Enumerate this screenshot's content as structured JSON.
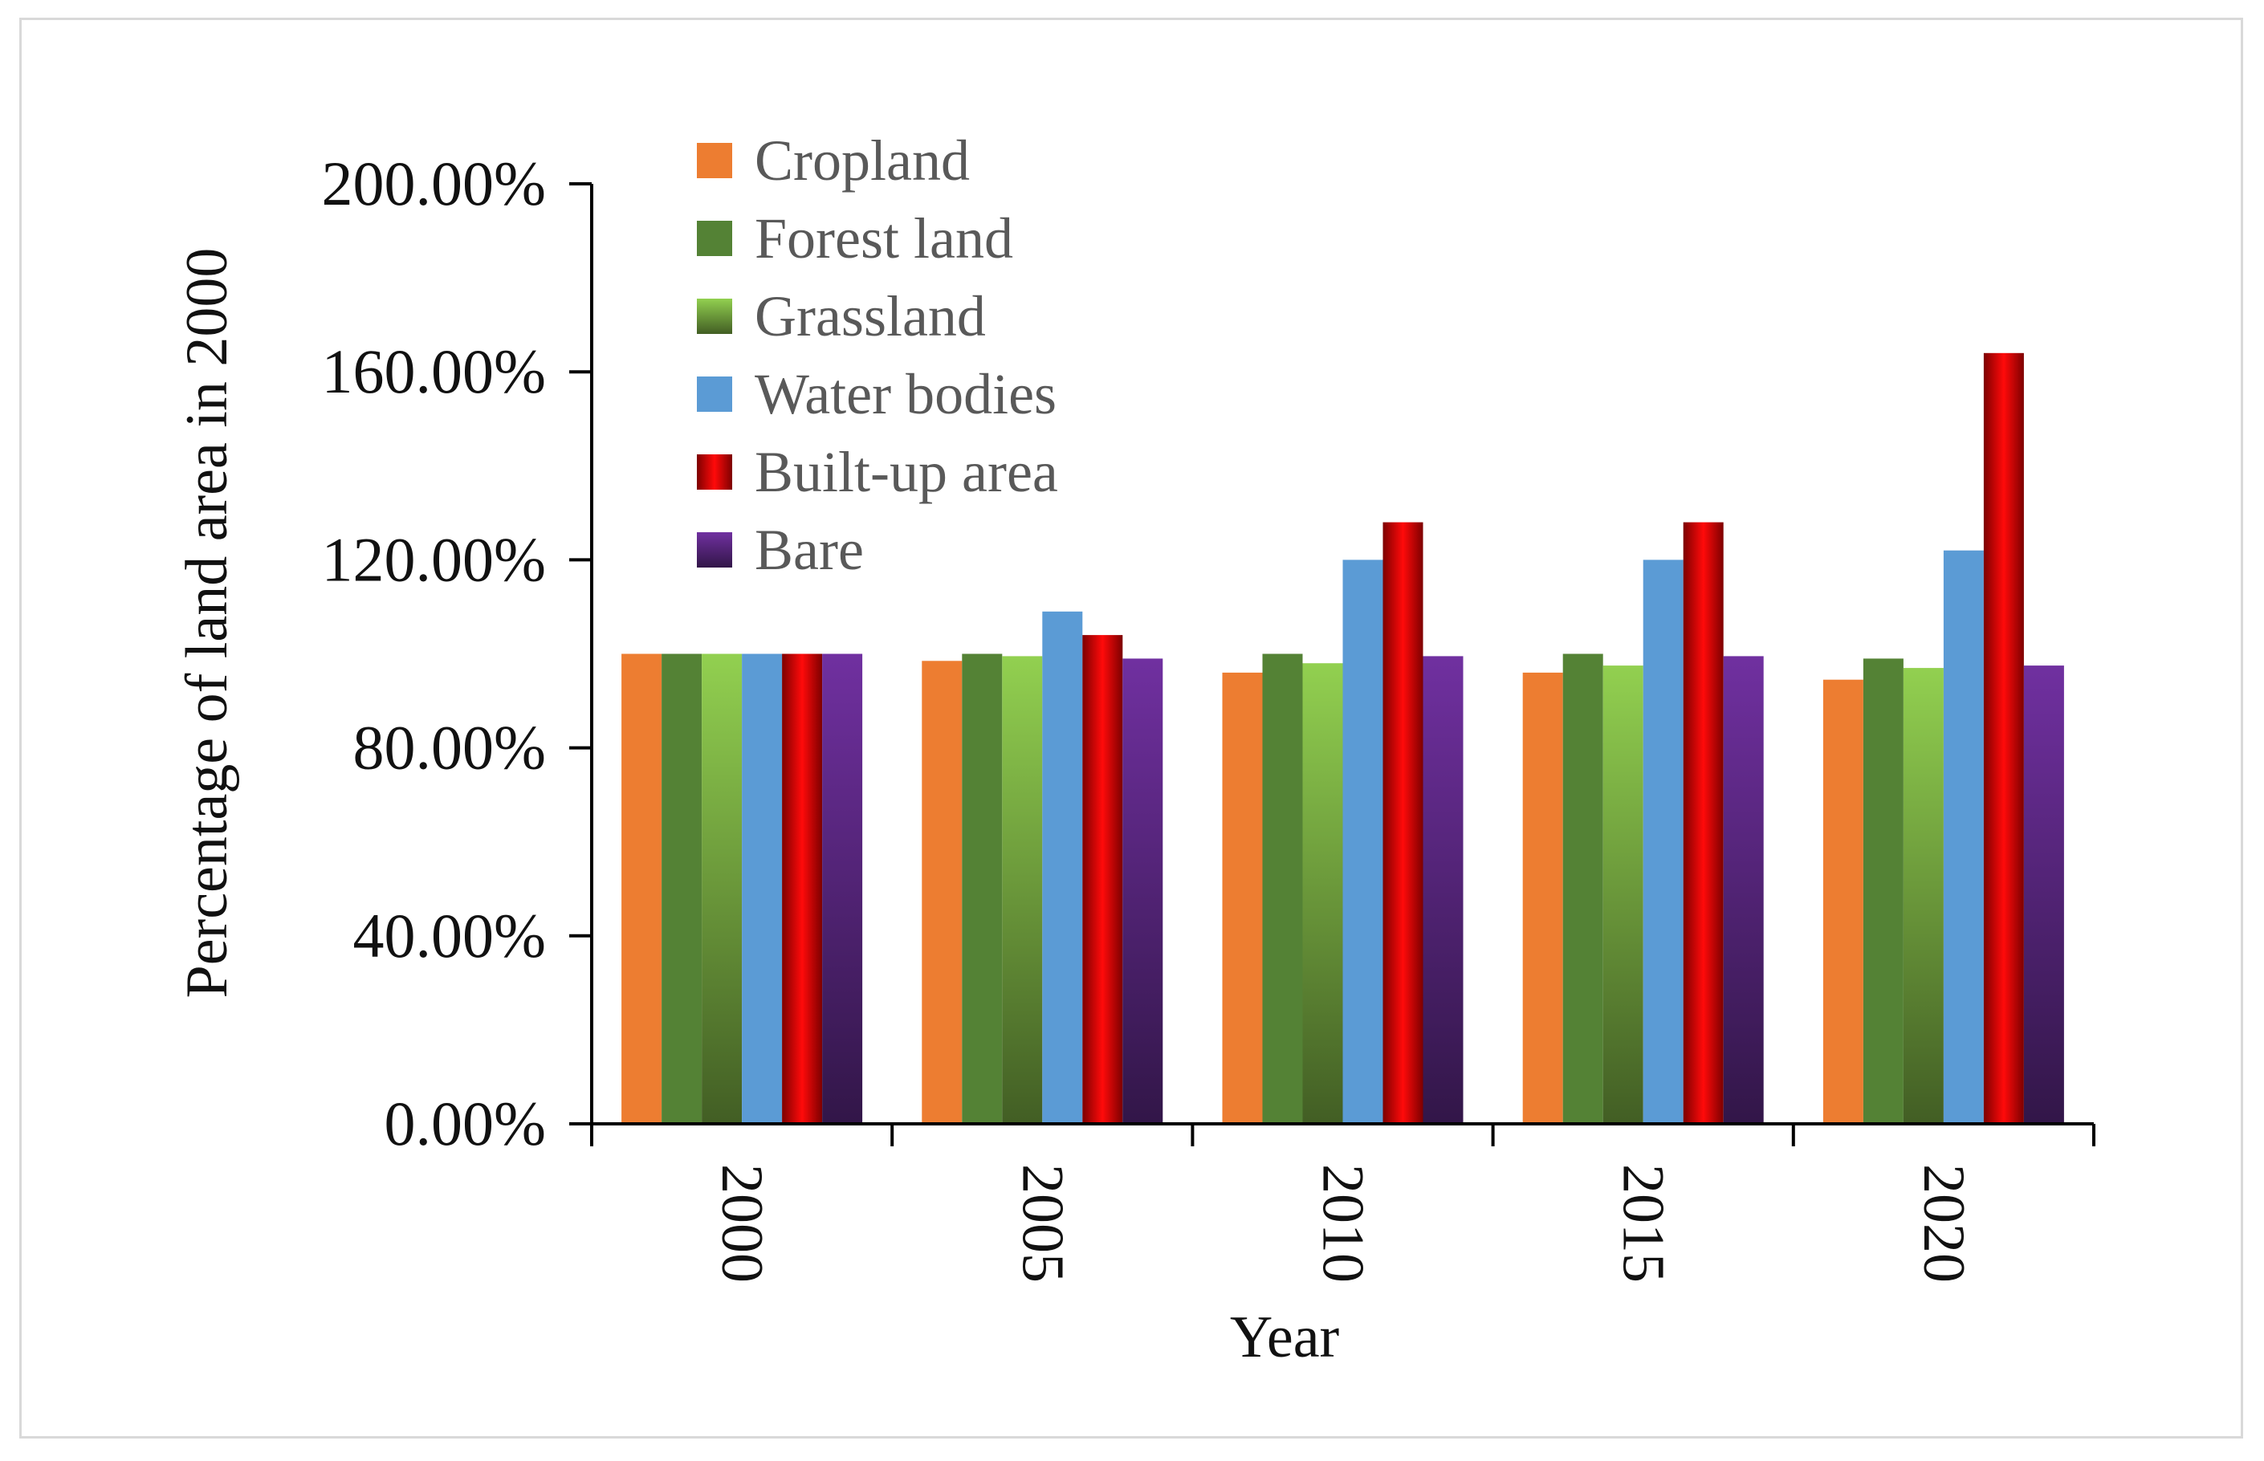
{
  "chart_data": {
    "type": "bar",
    "title": "",
    "xlabel": "Year",
    "ylabel": "Percentage of land area in 2000",
    "categories": [
      "2000",
      "2005",
      "2010",
      "2015",
      "2020"
    ],
    "ylim": [
      0,
      200
    ],
    "yticks": [
      0,
      40,
      80,
      120,
      160,
      200
    ],
    "ytick_labels": [
      "0.00%",
      "40.00%",
      "80.00%",
      "120.00%",
      "160.00%",
      "200.00%"
    ],
    "legend_position": "top-left",
    "grid": false,
    "series": [
      {
        "name": "Cropland",
        "color": "#ed7d31",
        "values": [
          100,
          98.5,
          96,
          96,
          94.5
        ]
      },
      {
        "name": "Forest land",
        "color": "#548235",
        "values": [
          100,
          100,
          100,
          100,
          99
        ]
      },
      {
        "name": "Grassland",
        "color": "#92d050",
        "values": [
          100,
          99.5,
          98,
          97.5,
          97
        ]
      },
      {
        "name": "Water bodies",
        "color": "#5b9bd5",
        "values": [
          100,
          109,
          120,
          120,
          122
        ]
      },
      {
        "name": "Built-up area",
        "color": "#c00000",
        "values": [
          100,
          104,
          128,
          128,
          164
        ]
      },
      {
        "name": "Bare",
        "color": "#7030a0",
        "values": [
          100,
          99,
          99.5,
          99.5,
          97.5
        ]
      }
    ]
  }
}
